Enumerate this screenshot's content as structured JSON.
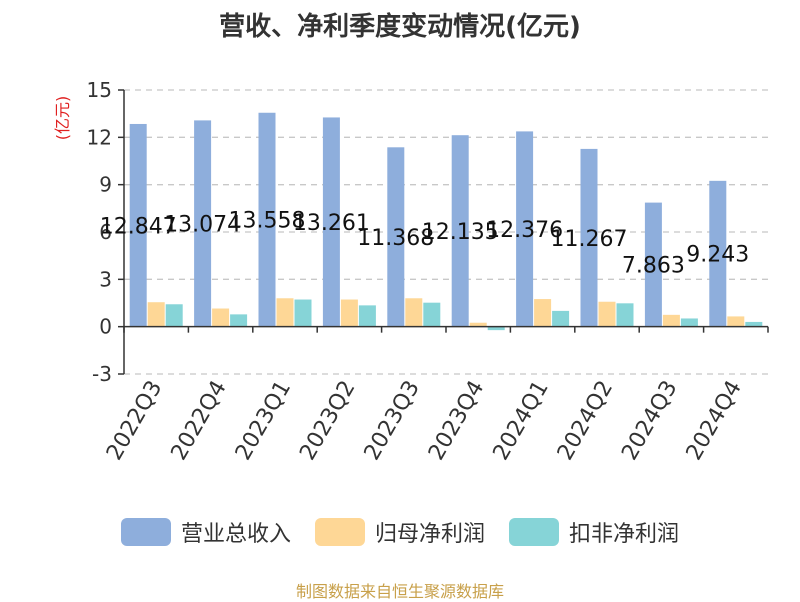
{
  "colors": {
    "revenue": "#8eaedc",
    "parent_profit": "#fed796",
    "nonrecurring_profit": "#86d4d7",
    "unit": "#e02020",
    "source": "#c8a04a"
  },
  "chart_data": {
    "type": "bar",
    "title": "营收、净利季度变动情况(亿元)",
    "ylabel": "(亿元)",
    "xlabel": "",
    "ylim": [
      -3,
      15
    ],
    "yticks": [
      -3,
      0,
      3,
      6,
      9,
      12,
      15
    ],
    "grid": true,
    "legend_position": "bottom",
    "categories": [
      "2022Q3",
      "2022Q4",
      "2023Q1",
      "2023Q2",
      "2023Q3",
      "2023Q4",
      "2024Q1",
      "2024Q2",
      "2024Q3",
      "2024Q4"
    ],
    "series": [
      {
        "name": "营业总收入",
        "values": [
          12.847,
          13.074,
          13.558,
          13.261,
          11.368,
          12.135,
          12.376,
          11.267,
          7.863,
          9.243
        ],
        "labels": [
          "12.847",
          "13.074",
          "13.558",
          "13.261",
          "11.368",
          "12.135",
          "12.376",
          "11.267",
          "7.863",
          "9.243"
        ]
      },
      {
        "name": "归母净利润",
        "values": [
          1.55,
          1.15,
          1.8,
          1.72,
          1.8,
          0.25,
          1.75,
          1.58,
          0.75,
          0.65
        ]
      },
      {
        "name": "扣非净利润",
        "values": [
          1.42,
          0.78,
          1.72,
          1.35,
          1.52,
          -0.22,
          1.0,
          1.48,
          0.52,
          0.3
        ]
      }
    ]
  },
  "legend": [
    {
      "label": "营业总收入"
    },
    {
      "label": "归母净利润"
    },
    {
      "label": "扣非净利润"
    }
  ],
  "source": "制图数据来自恒生聚源数据库"
}
